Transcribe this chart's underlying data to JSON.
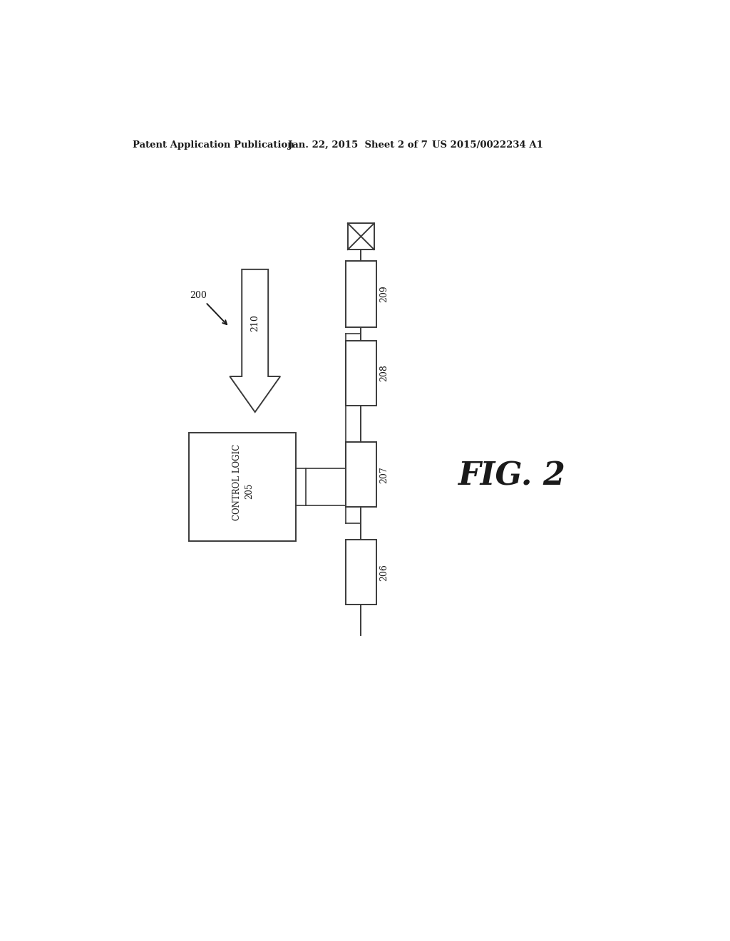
{
  "bg_color": "#ffffff",
  "header_left": "Patent Application Publication",
  "header_mid": "Jan. 22, 2015  Sheet 2 of 7",
  "header_right": "US 2015/0022234 A1",
  "fig_label": "FIG. 2",
  "ref_200": "200",
  "ref_210": "210",
  "ref_205": "205",
  "control_logic_label": "CONTROL LOGIC",
  "ref_206": "206",
  "ref_207": "207",
  "ref_208": "208",
  "ref_209": "209",
  "line_color": "#3a3a3a",
  "lw": 1.4
}
